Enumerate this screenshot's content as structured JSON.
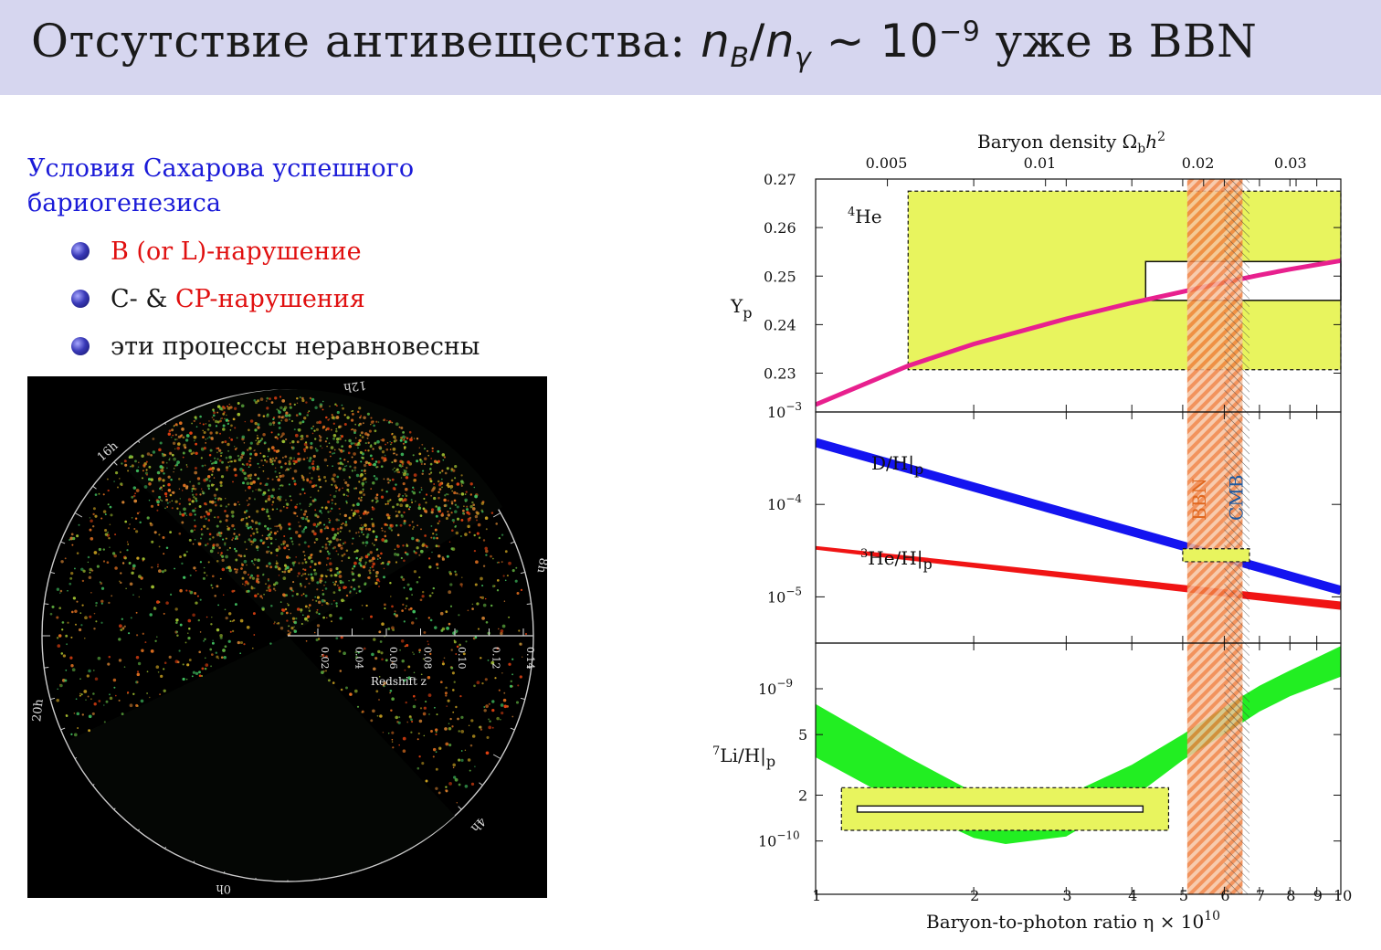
{
  "slide": {
    "title_prefix": "Отсутствие антивещества: ",
    "title_n1": "n",
    "title_sub1": "B",
    "title_slash": "/",
    "title_n2": "n",
    "title_sub2": "γ",
    "title_sim": " ∼ 10",
    "title_exp": "−9",
    "title_suffix": " уже в BBN"
  },
  "intro": {
    "line1": "Условия Сахарова успешного",
    "line2": "бариогенезиса"
  },
  "bullets": [
    {
      "text_red": "B (or L)-нарушение",
      "text_plain": ""
    },
    {
      "text_plain": "C- & ",
      "text_red": "CP-нарушения"
    },
    {
      "text_plain": "эти процессы неравновесны",
      "text_red": ""
    }
  ],
  "survey": {
    "hour_labels": [
      "12h",
      "16h",
      "8h",
      "20h",
      "4h",
      "0h"
    ],
    "redshift_ticks": [
      "0.02",
      "0.04",
      "0.06",
      "0.08",
      "0.10",
      "0.12",
      "0.14"
    ],
    "redshift_label": "Redshift z"
  },
  "chart_data": {
    "type": "line",
    "title_top": "Baryon density Ω",
    "title_top_sub": "b",
    "title_top_h": "h",
    "title_top_sup": "2",
    "top_ticks": [
      "0.005",
      "0.01",
      "0.02",
      "0.03"
    ],
    "top_tick_values": [
      0.005,
      0.01,
      0.02,
      0.03
    ],
    "xlabel": "Baryon-to-photon ratio η × 10",
    "xlabel_sup": "10",
    "x_ticks": [
      "1",
      "2",
      "3",
      "4",
      "5",
      "6",
      "7",
      "8",
      "9",
      "10"
    ],
    "xlim": [
      1,
      10
    ],
    "bands": {
      "bbn_label": "BBN",
      "bbn_range": [
        5.1,
        6.5
      ],
      "cmb_label": "CMB",
      "cmb_range": [
        6.0,
        6.7
      ]
    },
    "panels": [
      {
        "name": "helium",
        "ylabel": "Y",
        "ylabel_sub": "p",
        "annotation": "He",
        "annotation_sup": "4",
        "y_ticks": [
          "0.27",
          "0.26",
          "0.25",
          "0.24",
          "0.23"
        ],
        "ylim": [
          0.222,
          0.27
        ],
        "series": [
          {
            "name": "Yp",
            "color": "#e8208e",
            "x": [
              1,
              1.5,
              2,
              3,
              4,
              5,
              6,
              7,
              8,
              10
            ],
            "y": [
              0.2235,
              0.2315,
              0.236,
              0.2412,
              0.2445,
              0.2468,
              0.2487,
              0.2502,
              0.2514,
              0.2532
            ]
          }
        ],
        "obs_box": {
          "x": [
            1.5,
            10
          ],
          "y": [
            0.2307,
            0.2675
          ]
        },
        "obs_inner": {
          "x": [
            4.25,
            10
          ],
          "y": [
            0.245,
            0.253
          ]
        }
      },
      {
        "name": "deuterium-helium3",
        "y_ticks": [
          "10−3",
          "10−4",
          "10−5"
        ],
        "ylim_log10": [
          -5.5,
          -3
        ],
        "labels": {
          "dh": "D/H|",
          "dh_sub": "p",
          "he3": "He/H|",
          "he3_sup": "3",
          "he3_sub": "p"
        },
        "series": [
          {
            "name": "D/H",
            "color": "#1414f0",
            "x": [
              1,
              10
            ],
            "log10_y": [
              -3.33,
              -4.93
            ]
          },
          {
            "name": "3He/H",
            "color": "#f01414",
            "x": [
              1,
              10
            ],
            "log10_y": [
              -4.47,
              -5.1
            ]
          }
        ],
        "obs_box": {
          "x": [
            5.0,
            6.7
          ],
          "log10_y": [
            -4.62,
            -4.48
          ]
        }
      },
      {
        "name": "lithium",
        "ylabel": "Li/H|",
        "ylabel_sup": "7",
        "ylabel_sub": "p",
        "y_ticks": [
          "10−9",
          "5",
          "2",
          "10−10"
        ],
        "ylim_log10": [
          -10.35,
          -8.7
        ],
        "series": [
          {
            "name": "7Li/H",
            "color": "#22ee22",
            "x": [
              1,
              1.5,
              2,
              2.3,
              3,
              4,
              5,
              6,
              7,
              8,
              10
            ],
            "log10_y_low": [
              -9.45,
              -9.78,
              -9.98,
              -10.02,
              -9.97,
              -9.72,
              -9.47,
              -9.3,
              -9.15,
              -9.05,
              -8.92
            ],
            "log10_y_high": [
              -9.1,
              -9.45,
              -9.68,
              -9.75,
              -9.7,
              -9.5,
              -9.3,
              -9.12,
              -8.98,
              -8.88,
              -8.72
            ]
          }
        ],
        "obs_box": {
          "x": [
            1.12,
            4.7
          ],
          "log10_y": [
            -9.93,
            -9.65
          ]
        },
        "obs_inner": {
          "x": [
            1.2,
            4.2
          ],
          "log10_y": [
            -9.81,
            -9.77
          ]
        }
      }
    ]
  }
}
